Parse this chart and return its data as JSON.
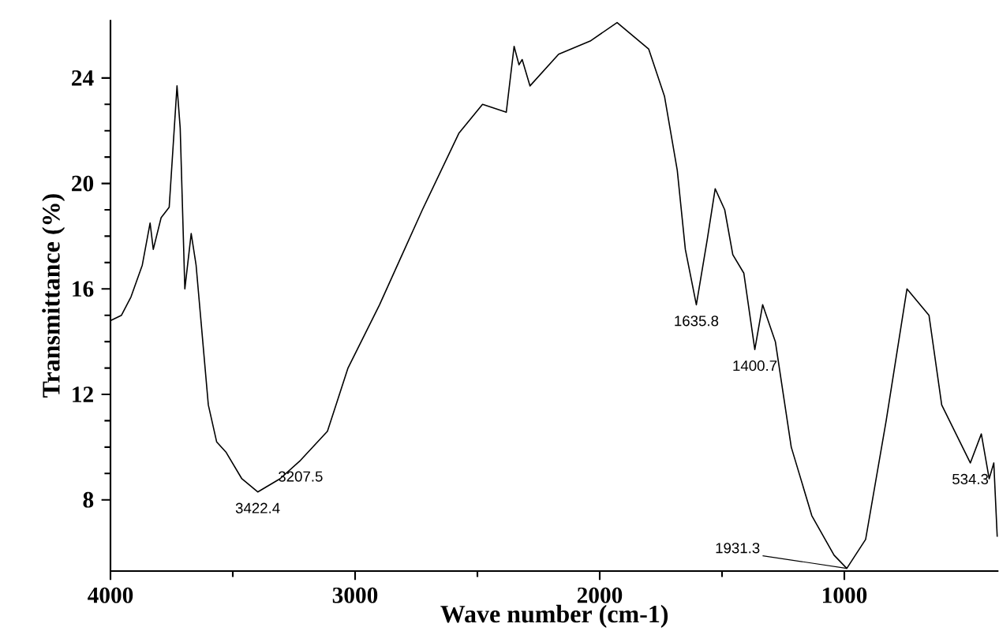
{
  "chart_data": {
    "type": "line",
    "xlabel": "Wave number (cm-1)",
    "ylabel": "Transmittance (%)",
    "xlim": [
      4000,
      370
    ],
    "ylim": [
      5.3,
      26.2
    ],
    "xticks": [
      4000,
      3000,
      2000,
      1000
    ],
    "yticks": [
      8,
      12,
      16,
      20,
      24
    ],
    "grid": false,
    "marker": "none",
    "line_style": "solid",
    "x": [
      4000,
      3955,
      3916,
      3870,
      3838,
      3825,
      3793,
      3760,
      3728,
      3715,
      3696,
      3670,
      3650,
      3600,
      3566,
      3527,
      3463,
      3398,
      3307,
      3223,
      3113,
      3029,
      2900,
      2725,
      2576,
      2479,
      2382,
      2350,
      2330,
      2317,
      2285,
      2168,
      2039,
      1929,
      1800,
      1735,
      1683,
      1650,
      1605,
      1560,
      1528,
      1489,
      1456,
      1411,
      1366,
      1334,
      1282,
      1217,
      1133,
      1042,
      990,
      913,
      829,
      744,
      654,
      602,
      485,
      440,
      408,
      389,
      375
    ],
    "series": [
      {
        "color": "#000000",
        "values": [
          14.8,
          15.0,
          15.7,
          16.9,
          18.5,
          17.5,
          18.7,
          19.1,
          23.7,
          22.1,
          16.0,
          18.1,
          16.9,
          11.6,
          10.2,
          9.8,
          8.8,
          8.3,
          8.8,
          9.5,
          10.6,
          13.0,
          15.4,
          19.0,
          21.9,
          23.0,
          22.7,
          25.2,
          24.5,
          24.7,
          23.7,
          24.9,
          25.4,
          26.1,
          25.1,
          23.3,
          20.5,
          17.5,
          15.4,
          17.9,
          19.8,
          19.0,
          17.3,
          16.6,
          13.7,
          15.4,
          14.0,
          10.0,
          7.4,
          5.9,
          5.4,
          6.5,
          11.0,
          16.0,
          15.0,
          11.6,
          9.4,
          10.5,
          8.8,
          9.4,
          6.6
        ]
      }
    ],
    "annotations": [
      {
        "text": "3422.4",
        "x": 3398,
        "y": 8.3
      },
      {
        "text": "3207.5",
        "x": 3223,
        "y": 9.5
      },
      {
        "text": "1635.8",
        "x": 1605,
        "y": 15.4
      },
      {
        "text": "1400.7",
        "x": 1366,
        "y": 13.7
      },
      {
        "text": "1931.3",
        "x": 990,
        "y": 5.4
      },
      {
        "text": "534.3",
        "x": 485,
        "y": 9.4
      }
    ]
  }
}
